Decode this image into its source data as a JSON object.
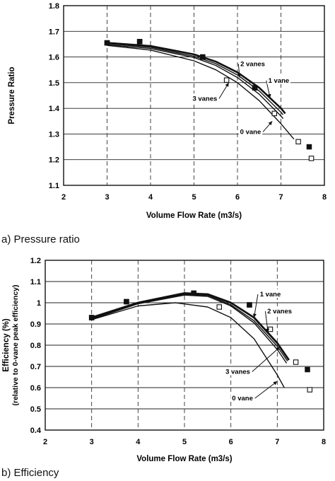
{
  "chart_data": [
    {
      "type": "line",
      "caption": "a) Pressure ratio",
      "xlabel": "Volume Flow Rate (m3/s)",
      "ylabel": "Pressure Ratio",
      "xlim": [
        2,
        8
      ],
      "ylim": [
        1.1,
        1.8
      ],
      "xticks": [
        "2",
        "3",
        "4",
        "5",
        "6",
        "7",
        "8"
      ],
      "yticks": [
        "1.1",
        "1.2",
        "1.3",
        "1.4",
        "1.5",
        "1.6",
        "1.7",
        "1.8"
      ],
      "grid": true,
      "series": [
        {
          "name": "0 vane",
          "marker": "open-square",
          "points": [
            [
              3.0,
              1.655
            ],
            [
              3.75,
              1.66
            ],
            [
              5.2,
              1.6
            ],
            [
              5.75,
              1.51
            ],
            [
              6.4,
              1.48
            ],
            [
              6.85,
              1.38
            ],
            [
              7.4,
              1.27
            ],
            [
              7.7,
              1.205
            ]
          ],
          "curve": [
            [
              3.0,
              1.645
            ],
            [
              4.0,
              1.627
            ],
            [
              5.0,
              1.585
            ],
            [
              5.5,
              1.55
            ],
            [
              6.0,
              1.5
            ],
            [
              6.5,
              1.43
            ],
            [
              7.0,
              1.34
            ],
            [
              7.3,
              1.28
            ]
          ]
        },
        {
          "name": "1 vane",
          "marker": "filled-square",
          "points": [
            [
              3.0,
              1.655
            ],
            [
              3.75,
              1.66
            ],
            [
              5.2,
              1.6
            ],
            [
              6.4,
              1.48
            ],
            [
              7.65,
              1.25
            ]
          ],
          "curve": [
            [
              3.0,
              1.655
            ],
            [
              4.0,
              1.643
            ],
            [
              5.0,
              1.61
            ],
            [
              5.5,
              1.582
            ],
            [
              6.0,
              1.54
            ],
            [
              6.5,
              1.48
            ],
            [
              7.0,
              1.4
            ],
            [
              7.1,
              1.38
            ]
          ]
        },
        {
          "name": "2 vanes",
          "marker": "none",
          "curve": [
            [
              3.0,
              1.652
            ],
            [
              4.0,
              1.638
            ],
            [
              5.0,
              1.603
            ],
            [
              5.5,
              1.574
            ],
            [
              6.0,
              1.53
            ],
            [
              6.5,
              1.468
            ],
            [
              7.0,
              1.385
            ],
            [
              7.05,
              1.375
            ]
          ]
        },
        {
          "name": "3 vanes",
          "marker": "none",
          "curve": [
            [
              3.0,
              1.648
            ],
            [
              4.0,
              1.633
            ],
            [
              5.0,
              1.598
            ],
            [
              5.5,
              1.567
            ],
            [
              6.0,
              1.52
            ],
            [
              6.5,
              1.455
            ],
            [
              7.0,
              1.37
            ],
            [
              7.05,
              1.36
            ]
          ]
        }
      ],
      "annotations": [
        {
          "text": "2 vanes",
          "x": 6.35,
          "y": 1.565,
          "ax": 6.05,
          "ay": 1.52
        },
        {
          "text": "1 vane",
          "x": 6.95,
          "y": 1.5,
          "ax": 6.75,
          "ay": 1.44
        },
        {
          "text": "3 vanes",
          "x": 5.25,
          "y": 1.43,
          "ax": 5.8,
          "ay": 1.5
        },
        {
          "text": "0 vane",
          "x": 6.3,
          "y": 1.3,
          "ax": 6.8,
          "ay": 1.35
        }
      ]
    },
    {
      "type": "line",
      "caption": "b) Efficiency",
      "xlabel": "Volume Flow Rate (m3/s)",
      "ylabel": "Efficiency (%)",
      "ylabel2": "(relative to 0-vane peak efficiency)",
      "xlim": [
        2,
        8
      ],
      "ylim": [
        0.4,
        1.2
      ],
      "xticks": [
        "2",
        "3",
        "4",
        "5",
        "6",
        "7",
        "8"
      ],
      "yticks": [
        "0.4",
        "0.5",
        "0.6",
        "0.7",
        "0.8",
        "0.9",
        "1",
        "1.1",
        "1.2"
      ],
      "grid": true,
      "series": [
        {
          "name": "0 vane",
          "marker": "open-square",
          "points": [
            [
              3.0,
              0.93
            ],
            [
              3.75,
              1.005
            ],
            [
              5.2,
              1.045
            ],
            [
              5.75,
              0.98
            ],
            [
              6.4,
              0.99
            ],
            [
              6.85,
              0.875
            ],
            [
              7.4,
              0.72
            ],
            [
              7.7,
              0.59
            ]
          ],
          "curve": [
            [
              3.0,
              0.92
            ],
            [
              4.0,
              0.985
            ],
            [
              4.8,
              1.0
            ],
            [
              5.5,
              0.98
            ],
            [
              6.0,
              0.93
            ],
            [
              6.5,
              0.83
            ],
            [
              7.0,
              0.66
            ],
            [
              7.15,
              0.6
            ]
          ]
        },
        {
          "name": "1 vane",
          "marker": "filled-square",
          "points": [
            [
              3.0,
              0.93
            ],
            [
              3.75,
              1.005
            ],
            [
              5.2,
              1.045
            ],
            [
              6.4,
              0.99
            ],
            [
              7.65,
              0.685
            ]
          ],
          "curve": [
            [
              3.0,
              0.93
            ],
            [
              4.0,
              1.0
            ],
            [
              5.0,
              1.045
            ],
            [
              5.5,
              1.04
            ],
            [
              6.0,
              1.0
            ],
            [
              6.5,
              0.93
            ],
            [
              7.0,
              0.81
            ],
            [
              7.25,
              0.73
            ]
          ]
        },
        {
          "name": "2 vanes",
          "marker": "none",
          "curve": [
            [
              3.0,
              0.925
            ],
            [
              4.0,
              0.997
            ],
            [
              5.0,
              1.04
            ],
            [
              5.5,
              1.035
            ],
            [
              6.0,
              0.99
            ],
            [
              6.5,
              0.915
            ],
            [
              7.0,
              0.795
            ],
            [
              7.22,
              0.725
            ]
          ]
        },
        {
          "name": "3 vanes",
          "marker": "none",
          "curve": [
            [
              3.0,
              0.922
            ],
            [
              4.0,
              0.995
            ],
            [
              5.0,
              1.036
            ],
            [
              5.5,
              1.03
            ],
            [
              6.0,
              0.985
            ],
            [
              6.5,
              0.905
            ],
            [
              7.0,
              0.78
            ],
            [
              7.2,
              0.715
            ]
          ]
        }
      ],
      "annotations": [
        {
          "text": "1 vane",
          "x": 6.85,
          "y": 1.03,
          "ax": 6.5,
          "ay": 0.93
        },
        {
          "text": "2 vanes",
          "x": 7.05,
          "y": 0.95,
          "ax": 6.8,
          "ay": 0.86
        },
        {
          "text": "3 vanes",
          "x": 6.15,
          "y": 0.665,
          "ax": 7.05,
          "ay": 0.79
        },
        {
          "text": "0 vane",
          "x": 6.25,
          "y": 0.54,
          "ax": 7.0,
          "ay": 0.63
        }
      ]
    }
  ]
}
